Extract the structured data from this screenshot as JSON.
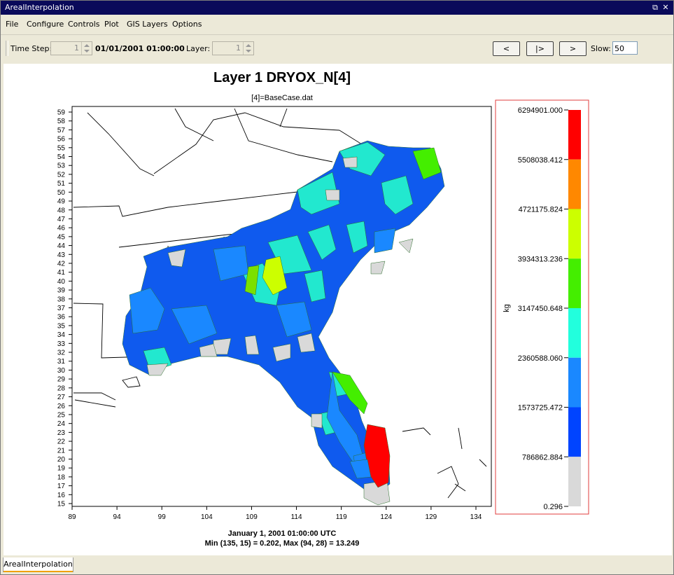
{
  "window": {
    "title": "ArealInterpolation"
  },
  "menu": [
    "File",
    "Configure",
    "Controls",
    "Plot",
    "GIS Layers",
    "Options"
  ],
  "toolbar": {
    "time_step_label": "Time Step:",
    "time_step_value": "1",
    "datetime": "01/01/2001 01:00:00",
    "layer_label": "Layer:",
    "layer_value": "1",
    "prev_label": "<",
    "play_label": "|>",
    "next_label": ">",
    "slow_label": "Slow:",
    "slow_value": "50"
  },
  "plot": {
    "title": "Layer 1 DRYOX_N[4]",
    "subtitle": "[4]=BaseCase.dat",
    "footer_line1": "January 1, 2001 01:00:00 UTC",
    "footer_line2": "Min (135, 15) = 0.202, Max (94, 28) = 13.249",
    "x_ticks": [
      "89",
      "94",
      "99",
      "104",
      "109",
      "114",
      "119",
      "124",
      "129",
      "134"
    ],
    "y_ticks": [
      "15",
      "16",
      "17",
      "18",
      "19",
      "20",
      "21",
      "22",
      "23",
      "24",
      "25",
      "26",
      "27",
      "28",
      "29",
      "30",
      "31",
      "32",
      "33",
      "34",
      "35",
      "36",
      "37",
      "38",
      "39",
      "40",
      "41",
      "42",
      "43",
      "44",
      "45",
      "46",
      "47",
      "48",
      "49",
      "50",
      "51",
      "52",
      "53",
      "54",
      "55",
      "56",
      "57",
      "58",
      "59"
    ]
  },
  "legend": {
    "unit": "kg",
    "labels": [
      "6294901.000",
      "5508038.412",
      "4721175.824",
      "3934313.236",
      "3147450.648",
      "2360588.060",
      "1573725.472",
      "786862.884",
      "0.296"
    ],
    "colors": [
      "#ff0000",
      "#ff8800",
      "#ccff00",
      "#44ee00",
      "#22ffdd",
      "#1a88ff",
      "#0044ff",
      "#d9d9d9"
    ]
  },
  "statusbar": {
    "tab_label": "ArealInterpolation"
  }
}
